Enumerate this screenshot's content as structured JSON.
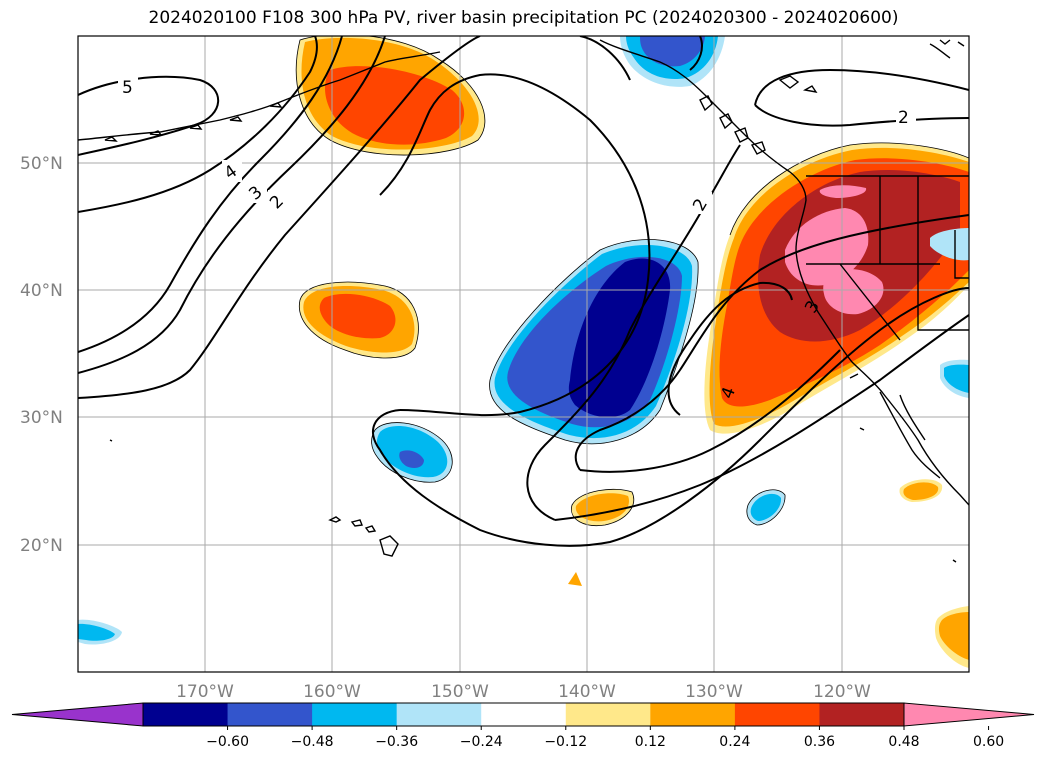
{
  "title": "2024020100 F108 300 hPa PV, river basin precipitation PC (2024020300 - 2024020600)",
  "map": {
    "lat_labels": [
      "50°N",
      "40°N",
      "30°N",
      "20°N"
    ],
    "lon_labels": [
      "170°W",
      "160°W",
      "150°W",
      "140°W",
      "130°W",
      "120°W"
    ],
    "contour_labels": [
      "5",
      "4",
      "3",
      "2",
      "2",
      "2",
      "4",
      "3"
    ]
  },
  "colorbar": {
    "ticks": [
      "−0.60",
      "−0.48",
      "−0.36",
      "−0.24",
      "−0.12",
      "0.12",
      "0.24",
      "0.36",
      "0.48",
      "0.60"
    ],
    "colors": [
      "#9933cc",
      "#000090",
      "#3355cc",
      "#00b8f0",
      "#b0e4f8",
      "#ffffff",
      "#ffe88a",
      "#ffa500",
      "#ff4500",
      "#b22222",
      "#ff88b0"
    ]
  }
}
